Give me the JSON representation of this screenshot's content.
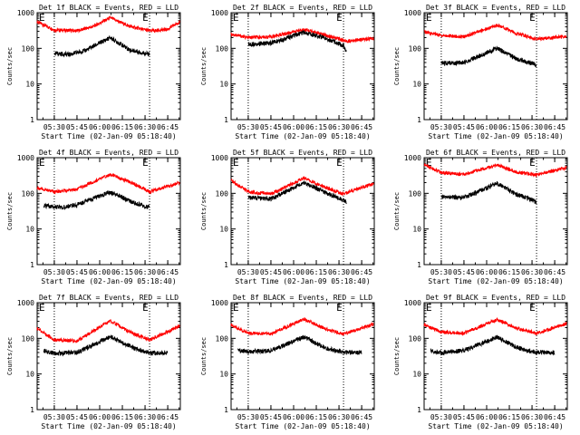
{
  "chart_data": [
    {
      "type": "line",
      "title": "Det 1f BLACK = Events, RED = LLD",
      "xlabel": "Start Time (02-Jan-09 05:18:40)",
      "ylabel": "Counts/sec",
      "yscale": "log",
      "ylim": [
        1,
        1000
      ],
      "yticks": [
        "1",
        "10",
        "100",
        "1000"
      ],
      "xticks": [
        "05:30",
        "05:45",
        "06:00",
        "06:15",
        "06:30",
        "06:45"
      ],
      "xlim": [
        "05:18:40",
        "06:53:20"
      ],
      "markers": [
        "05:30",
        "06:33"
      ],
      "marker_label": "E",
      "series": [
        {
          "color": "#ff0000",
          "points": [
            [
              "05:18:40",
              560
            ],
            [
              "05:24",
              430
            ],
            [
              "05:30",
              330
            ],
            [
              "05:45",
              310
            ],
            [
              "05:55",
              400
            ],
            [
              "06:07",
              720
            ],
            [
              "06:20",
              410
            ],
            [
              "06:33",
              310
            ],
            [
              "06:45",
              340
            ],
            [
              "06:53",
              560
            ]
          ]
        },
        {
          "color": "#000000",
          "points": [
            [
              "05:30",
              72
            ],
            [
              "05:40",
              67
            ],
            [
              "05:50",
              85
            ],
            [
              "06:07",
              200
            ],
            [
              "06:20",
              90
            ],
            [
              "06:33",
              68
            ]
          ]
        }
      ]
    },
    {
      "type": "line",
      "title": "Det 2f BLACK = Events, RED = LLD",
      "xlabel": "Start Time (02-Jan-09 05:18:40)",
      "ylabel": "Counts/sec",
      "yscale": "log",
      "ylim": [
        1,
        1000
      ],
      "yticks": [
        "1",
        "10",
        "100",
        "1000"
      ],
      "xticks": [
        "05:30",
        "05:45",
        "06:00",
        "06:15",
        "06:30",
        "06:45"
      ],
      "xlim": [
        "05:18:40",
        "06:53:20"
      ],
      "markers": [
        "05:30",
        "06:33"
      ],
      "marker_label": "E",
      "series": [
        {
          "color": "#ff0000",
          "points": [
            [
              "05:18:40",
              250
            ],
            [
              "05:30",
              200
            ],
            [
              "05:45",
              210
            ],
            [
              "06:07",
              340
            ],
            [
              "06:20",
              240
            ],
            [
              "06:35",
              160
            ],
            [
              "06:53",
              190
            ]
          ]
        },
        {
          "color": "#000000",
          "points": [
            [
              "05:30",
              130
            ],
            [
              "05:45",
              140
            ],
            [
              "06:07",
              280
            ],
            [
              "06:20",
              200
            ],
            [
              "06:33",
              120
            ],
            [
              "06:35",
              80
            ]
          ]
        }
      ]
    },
    {
      "type": "line",
      "title": "Det 3f BLACK = Events, RED = LLD",
      "xlabel": "Start Time (02-Jan-09 05:18:40)",
      "ylabel": "Counts/sec",
      "yscale": "log",
      "ylim": [
        1,
        1000
      ],
      "yticks": [
        "1",
        "10",
        "100",
        "1000"
      ],
      "xticks": [
        "05:30",
        "05:45",
        "06:00",
        "06:15",
        "06:30",
        "06:45"
      ],
      "xlim": [
        "05:18:40",
        "06:53:20"
      ],
      "markers": [
        "05:30",
        "06:33"
      ],
      "marker_label": "E",
      "series": [
        {
          "color": "#ff0000",
          "points": [
            [
              "05:18:40",
              290
            ],
            [
              "05:30",
              230
            ],
            [
              "05:45",
              210
            ],
            [
              "06:07",
              450
            ],
            [
              "06:20",
              260
            ],
            [
              "06:33",
              180
            ],
            [
              "06:53",
              220
            ]
          ]
        },
        {
          "color": "#000000",
          "points": [
            [
              "05:30",
              38
            ],
            [
              "05:45",
              40
            ],
            [
              "06:07",
              100
            ],
            [
              "06:20",
              50
            ],
            [
              "06:33",
              35
            ]
          ]
        }
      ]
    },
    {
      "type": "line",
      "title": "Det 4f BLACK = Events, RED = LLD",
      "xlabel": "Start Time (02-Jan-09 05:18:40)",
      "ylabel": "Counts/sec",
      "yscale": "log",
      "ylim": [
        1,
        1000
      ],
      "yticks": [
        "1",
        "10",
        "100",
        "1000"
      ],
      "xticks": [
        "05:30",
        "05:45",
        "06:00",
        "06:15",
        "06:30",
        "06:45"
      ],
      "xlim": [
        "05:18:40",
        "06:53:20"
      ],
      "markers": [
        "05:30",
        "06:33"
      ],
      "marker_label": "E",
      "series": [
        {
          "color": "#ff0000",
          "points": [
            [
              "05:18:40",
              140
            ],
            [
              "05:30",
              110
            ],
            [
              "05:45",
              130
            ],
            [
              "06:07",
              340
            ],
            [
              "06:20",
              210
            ],
            [
              "06:33",
              110
            ],
            [
              "06:53",
              200
            ]
          ]
        },
        {
          "color": "#000000",
          "points": [
            [
              "05:23",
              45
            ],
            [
              "05:35",
              40
            ],
            [
              "05:45",
              48
            ],
            [
              "06:07",
              110
            ],
            [
              "06:20",
              60
            ],
            [
              "06:33",
              40
            ]
          ]
        }
      ]
    },
    {
      "type": "line",
      "title": "Det 5f BLACK = Events, RED = LLD",
      "xlabel": "Start Time (02-Jan-09 05:18:40)",
      "ylabel": "Counts/sec",
      "yscale": "log",
      "ylim": [
        1,
        1000
      ],
      "yticks": [
        "1",
        "10",
        "100",
        "1000"
      ],
      "xticks": [
        "05:30",
        "05:45",
        "06:00",
        "06:15",
        "06:30",
        "06:45"
      ],
      "xlim": [
        "05:18:40",
        "06:53:20"
      ],
      "markers": [
        "05:30",
        "06:33"
      ],
      "marker_label": "E",
      "series": [
        {
          "color": "#ff0000",
          "points": [
            [
              "05:18:40",
              230
            ],
            [
              "05:30",
              110
            ],
            [
              "05:45",
              95
            ],
            [
              "06:07",
              270
            ],
            [
              "06:20",
              150
            ],
            [
              "06:33",
              95
            ],
            [
              "06:53",
              190
            ]
          ]
        },
        {
          "color": "#000000",
          "points": [
            [
              "05:30",
              75
            ],
            [
              "05:45",
              70
            ],
            [
              "06:07",
              200
            ],
            [
              "06:20",
              110
            ],
            [
              "06:33",
              65
            ],
            [
              "06:35",
              55
            ]
          ]
        }
      ]
    },
    {
      "type": "line",
      "title": "Det 6f BLACK = Events, RED = LLD",
      "xlabel": "Start Time (02-Jan-09 05:18:40)",
      "ylabel": "Counts/sec",
      "yscale": "log",
      "ylim": [
        1,
        1000
      ],
      "yticks": [
        "1",
        "10",
        "100",
        "1000"
      ],
      "xticks": [
        "05:30",
        "05:45",
        "06:00",
        "06:15",
        "06:30",
        "06:45"
      ],
      "xlim": [
        "05:18:40",
        "06:53:20"
      ],
      "markers": [
        "05:30",
        "06:33"
      ],
      "marker_label": "E",
      "series": [
        {
          "color": "#ff0000",
          "points": [
            [
              "05:18:40",
              640
            ],
            [
              "05:30",
              380
            ],
            [
              "05:45",
              340
            ],
            [
              "06:07",
              620
            ],
            [
              "06:20",
              390
            ],
            [
              "06:33",
              330
            ],
            [
              "06:53",
              520
            ]
          ]
        },
        {
          "color": "#000000",
          "points": [
            [
              "05:30",
              80
            ],
            [
              "05:45",
              75
            ],
            [
              "06:07",
              190
            ],
            [
              "06:20",
              90
            ],
            [
              "06:33",
              60
            ]
          ]
        }
      ]
    },
    {
      "type": "line",
      "title": "Det 7f BLACK = Events, RED = LLD",
      "xlabel": "Start Time (02-Jan-09 05:18:40)",
      "ylabel": "Counts/sec",
      "yscale": "log",
      "ylim": [
        1,
        1000
      ],
      "yticks": [
        "1",
        "10",
        "100",
        "1000"
      ],
      "xticks": [
        "05:30",
        "05:45",
        "06:00",
        "06:15",
        "06:30",
        "06:45"
      ],
      "xlim": [
        "05:18:40",
        "06:53:20"
      ],
      "markers": [
        "05:30",
        "06:33"
      ],
      "marker_label": "E",
      "series": [
        {
          "color": "#ff0000",
          "points": [
            [
              "05:18:40",
              190
            ],
            [
              "05:30",
              90
            ],
            [
              "05:45",
              85
            ],
            [
              "06:07",
              310
            ],
            [
              "06:20",
              150
            ],
            [
              "06:33",
              90
            ],
            [
              "06:53",
              220
            ]
          ]
        },
        {
          "color": "#000000",
          "points": [
            [
              "05:23",
              45
            ],
            [
              "05:30",
              38
            ],
            [
              "05:45",
              40
            ],
            [
              "06:07",
              110
            ],
            [
              "06:20",
              60
            ],
            [
              "06:33",
              38
            ],
            [
              "06:45",
              40
            ]
          ]
        }
      ]
    },
    {
      "type": "line",
      "title": "Det 8f BLACK = Events, RED = LLD",
      "xlabel": "Start Time (02-Jan-09 05:18:40)",
      "ylabel": "Counts/sec",
      "yscale": "log",
      "ylim": [
        1,
        1000
      ],
      "yticks": [
        "1",
        "10",
        "100",
        "1000"
      ],
      "xticks": [
        "05:30",
        "05:45",
        "06:00",
        "06:15",
        "06:30",
        "06:45"
      ],
      "xlim": [
        "05:18:40",
        "06:53:20"
      ],
      "markers": [
        "05:30",
        "06:33"
      ],
      "marker_label": "E",
      "series": [
        {
          "color": "#ff0000",
          "points": [
            [
              "05:18:40",
              240
            ],
            [
              "05:30",
              140
            ],
            [
              "05:45",
              135
            ],
            [
              "06:07",
              350
            ],
            [
              "06:20",
              190
            ],
            [
              "06:33",
              130
            ],
            [
              "06:53",
              250
            ]
          ]
        },
        {
          "color": "#000000",
          "points": [
            [
              "05:23",
              45
            ],
            [
              "05:30",
              42
            ],
            [
              "05:45",
              45
            ],
            [
              "06:07",
              110
            ],
            [
              "06:20",
              55
            ],
            [
              "06:33",
              40
            ],
            [
              "06:45",
              40
            ]
          ]
        }
      ]
    },
    {
      "type": "line",
      "title": "Det 9f BLACK = Events, RED = LLD",
      "xlabel": "Start Time (02-Jan-09 05:18:40)",
      "ylabel": "Counts/sec",
      "yscale": "log",
      "ylim": [
        1,
        1000
      ],
      "yticks": [
        "1",
        "10",
        "100",
        "1000"
      ],
      "xticks": [
        "05:30",
        "05:45",
        "06:00",
        "06:15",
        "06:30",
        "06:45"
      ],
      "xlim": [
        "05:18:40",
        "06:53:20"
      ],
      "markers": [
        "05:30",
        "06:33"
      ],
      "marker_label": "E",
      "series": [
        {
          "color": "#ff0000",
          "points": [
            [
              "05:18:40",
              240
            ],
            [
              "05:30",
              150
            ],
            [
              "05:45",
              140
            ],
            [
              "06:07",
              340
            ],
            [
              "06:20",
              190
            ],
            [
              "06:33",
              140
            ],
            [
              "06:53",
              260
            ]
          ]
        },
        {
          "color": "#000000",
          "points": [
            [
              "05:23",
              45
            ],
            [
              "05:30",
              40
            ],
            [
              "05:45",
              45
            ],
            [
              "06:07",
              110
            ],
            [
              "06:20",
              55
            ],
            [
              "06:33",
              40
            ],
            [
              "06:45",
              40
            ]
          ]
        }
      ]
    }
  ]
}
